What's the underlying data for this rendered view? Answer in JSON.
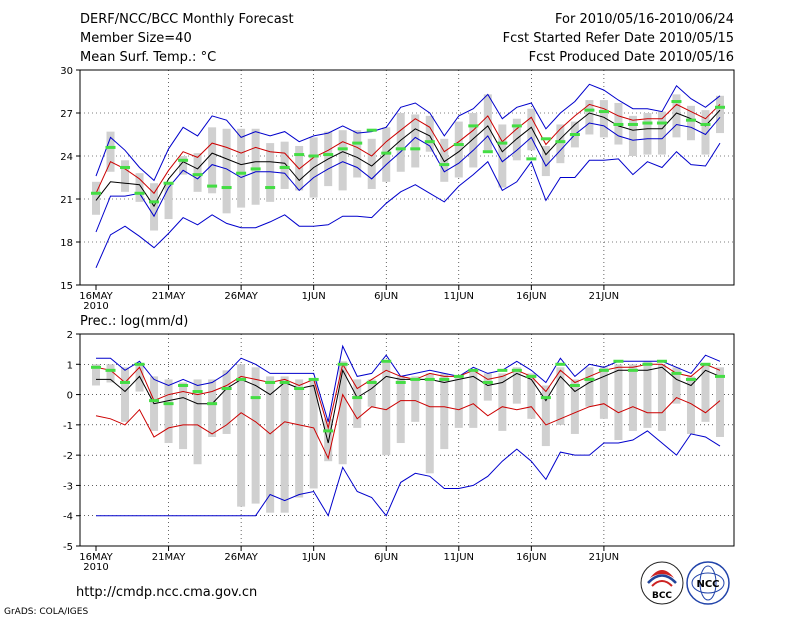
{
  "header": {
    "title": "DERF/NCC/BCC Monthly Forecast",
    "member_size": "Member Size=40",
    "variable": "Mean Surf. Temp.: °C",
    "period": "For 2010/05/16-2010/06/24",
    "started": "Fcst Started Refer Date 2010/05/15",
    "produced": "Fcst Produced Date 2010/05/16"
  },
  "footer": {
    "url": "http://cmdp.ncc.cma.gov.cn",
    "grads": "GrADS: COLA/IGES",
    "logo_bcc": "BCC",
    "logo_ncc": "NCC"
  },
  "colors": {
    "envelope": "#0000cc",
    "spread": "#cc0000",
    "mean": "#000000",
    "bar": "#d0d0d0",
    "marker": "#44dd44"
  },
  "chart_data": [
    {
      "type": "line",
      "title": "Mean Surf. Temp.: °C",
      "x_tick_labels": [
        "16MAY",
        "21MAY",
        "26MAY",
        "1JUN",
        "6JUN",
        "11JUN",
        "16JUN",
        "21JUN"
      ],
      "x_tick_days": [
        0,
        5,
        10,
        15,
        20,
        25,
        30,
        35
      ],
      "x_year_label": "2010",
      "ylim": [
        15,
        30
      ],
      "yticks": [
        15,
        18,
        21,
        24,
        27,
        30
      ],
      "grid": true,
      "series": [
        {
          "name": "max",
          "values": [
            16.2,
            18.5,
            19.1,
            18.4,
            17.6,
            18.6,
            19.7,
            19.2,
            19.9,
            19.3,
            19.0,
            19.0,
            19.4,
            19.9,
            19.1,
            19.1,
            19.2,
            19.8,
            19.8,
            19.7,
            20.7,
            21.5,
            22.0,
            21.4,
            20.8,
            21.9,
            22.7,
            23.6,
            21.6,
            22.2,
            23.6,
            20.9,
            22.5,
            22.5,
            23.7,
            23.7,
            23.8,
            22.7,
            23.6,
            23.2,
            24.3,
            23.4,
            23.3,
            24.9
          ]
        },
        {
          "name": "min",
          "values": [
            18.7,
            21.2,
            21.2,
            21.4,
            19.8,
            21.8,
            23.0,
            22.4,
            23.4,
            23.1,
            22.5,
            22.9,
            22.9,
            22.8,
            21.6,
            22.5,
            23.1,
            23.6,
            23.2,
            22.4,
            23.4,
            24.3,
            25.3,
            24.7,
            22.9,
            23.5,
            24.4,
            25.4,
            23.6,
            24.4,
            25.3,
            23.3,
            24.4,
            25.5,
            26.3,
            26.1,
            25.4,
            25.1,
            25.2,
            25.2,
            26.2,
            26.0,
            25.5,
            26.7
          ]
        },
        {
          "name": "mean",
          "values": [
            20.9,
            22.2,
            22.1,
            22.0,
            20.5,
            22.4,
            23.6,
            23.1,
            24.2,
            23.8,
            23.4,
            23.6,
            23.6,
            23.5,
            22.3,
            23.2,
            23.8,
            24.3,
            23.9,
            23.3,
            24.2,
            25.1,
            25.9,
            25.4,
            23.6,
            24.3,
            25.2,
            26.1,
            24.3,
            25.2,
            26.0,
            24.1,
            25.2,
            26.2,
            27.0,
            26.7,
            26.1,
            25.8,
            25.9,
            25.9,
            27.0,
            26.6,
            26.1,
            27.2
          ]
        },
        {
          "name": "max2",
          "values": [
            21.4,
            23.6,
            23.1,
            22.4,
            21.4,
            23.0,
            24.3,
            23.9,
            24.9,
            24.6,
            24.2,
            24.6,
            24.3,
            24.2,
            23.1,
            23.9,
            24.4,
            25.0,
            24.6,
            24.0,
            25.0,
            25.8,
            26.6,
            26.0,
            24.3,
            25.0,
            25.8,
            26.8,
            25.0,
            25.9,
            26.7,
            24.8,
            25.9,
            26.8,
            27.6,
            27.3,
            26.8,
            26.5,
            26.6,
            26.6,
            27.6,
            27.1,
            26.6,
            27.6
          ]
        },
        {
          "name": "upper",
          "values": [
            22.6,
            25.3,
            24.4,
            23.2,
            22.3,
            24.5,
            26.0,
            25.4,
            26.8,
            26.5,
            25.3,
            25.7,
            25.4,
            25.7,
            25.0,
            25.4,
            25.6,
            26.1,
            25.6,
            25.7,
            26.0,
            27.4,
            27.7,
            27.0,
            25.4,
            26.8,
            27.3,
            28.3,
            26.6,
            27.4,
            27.7,
            25.9,
            27.0,
            27.8,
            29.0,
            28.6,
            27.9,
            27.3,
            27.3,
            27.1,
            28.9,
            28.0,
            27.4,
            28.2
          ]
        },
        {
          "name": "bar_top",
          "values": [
            22.2,
            25.7,
            23.7,
            22.8,
            22.1,
            22.1,
            24.0,
            24.2,
            26.0,
            25.9,
            25.9,
            25.9,
            24.9,
            25.0,
            24.7,
            25.3,
            25.7,
            25.8,
            25.8,
            25.2,
            26.0,
            27.0,
            26.9,
            26.8,
            25.2,
            26.4,
            27.0,
            28.3,
            26.2,
            26.6,
            27.3,
            24.7,
            26.2,
            26.4,
            27.9,
            27.9,
            27.7,
            26.8,
            27.0,
            27.1,
            28.3,
            27.5,
            27.2,
            28.2
          ]
        },
        {
          "name": "bar_bottom",
          "values": [
            19.9,
            22.9,
            21.5,
            20.8,
            18.8,
            19.6,
            22.7,
            21.5,
            21.4,
            20.0,
            20.4,
            20.6,
            20.8,
            21.7,
            21.6,
            21.1,
            21.9,
            21.6,
            22.5,
            21.7,
            22.2,
            22.9,
            23.2,
            24.3,
            22.2,
            22.5,
            23.2,
            24.4,
            21.8,
            23.7,
            24.4,
            22.6,
            23.5,
            24.6,
            25.5,
            25.3,
            24.8,
            24.0,
            24.1,
            24.1,
            25.3,
            25.1,
            24.1,
            25.6
          ]
        },
        {
          "name": "obs_marker",
          "values": [
            21.4,
            24.6,
            23.2,
            21.4,
            20.8,
            22.1,
            23.7,
            22.7,
            21.9,
            21.8,
            22.8,
            23.1,
            21.8,
            23.2,
            24.1,
            24.0,
            24.1,
            24.5,
            24.9,
            25.8,
            24.2,
            24.5,
            24.5,
            25.0,
            23.4,
            24.8,
            26.1,
            24.3,
            24.9,
            26.1,
            23.8,
            25.2,
            25.0,
            25.5,
            27.2,
            27.1,
            26.2,
            26.2,
            26.3,
            26.3,
            27.8,
            26.5,
            26.2,
            27.4
          ]
        }
      ]
    },
    {
      "type": "line",
      "title": "Prec.: log(mm/d)",
      "x_tick_labels": [
        "16MAY",
        "21MAY",
        "26MAY",
        "1JUN",
        "6JUN",
        "11JUN",
        "16JUN",
        "21JUN"
      ],
      "x_tick_days": [
        0,
        5,
        10,
        15,
        20,
        25,
        30,
        35
      ],
      "x_year_label": "2010",
      "ylim": [
        -5,
        2
      ],
      "yticks": [
        -5,
        -4,
        -3,
        -2,
        -1,
        0,
        1,
        2
      ],
      "grid": true,
      "series": [
        {
          "name": "min",
          "values": [
            -4.0,
            -4.0,
            -4.0,
            -4.0,
            -4.0,
            -4.0,
            -4.0,
            -4.0,
            -4.0,
            -4.0,
            -4.0,
            -4.0,
            -3.3,
            -3.5,
            -3.3,
            -3.2,
            -4.0,
            -2.4,
            -3.2,
            -3.4,
            -4.0,
            -2.9,
            -2.6,
            -2.7,
            -3.1,
            -3.1,
            -3.0,
            -2.7,
            -2.2,
            -1.8,
            -2.2,
            -2.8,
            -1.9,
            -2.0,
            -2.0,
            -1.6,
            -1.6,
            -1.5,
            -1.2,
            -1.6,
            -2.0,
            -1.3,
            -1.4,
            -1.7
          ]
        },
        {
          "name": "spread_low",
          "values": [
            -0.7,
            -0.8,
            -1.0,
            -0.5,
            -1.4,
            -1.1,
            -1.0,
            -1.0,
            -1.3,
            -1.0,
            -0.6,
            -0.9,
            -1.3,
            -0.9,
            -1.0,
            -1.1,
            -2.1,
            0.0,
            -0.8,
            -0.4,
            -0.5,
            -0.2,
            -0.2,
            -0.4,
            -0.4,
            -0.5,
            -0.3,
            -0.7,
            -0.4,
            -0.5,
            -0.4,
            -1.0,
            -0.8,
            -0.6,
            -0.4,
            -0.3,
            -0.6,
            -0.4,
            -0.6,
            -0.6,
            -0.1,
            -0.3,
            -0.6,
            -0.2
          ]
        },
        {
          "name": "mean",
          "values": [
            0.5,
            0.5,
            0.1,
            0.6,
            -0.3,
            -0.2,
            -0.1,
            -0.3,
            -0.3,
            0.2,
            0.5,
            0.3,
            0.0,
            0.4,
            0.2,
            0.3,
            -1.6,
            0.8,
            -0.1,
            0.2,
            0.6,
            0.5,
            0.5,
            0.5,
            0.4,
            0.5,
            0.6,
            0.3,
            0.4,
            0.7,
            0.5,
            -0.2,
            0.6,
            0.1,
            0.4,
            0.6,
            0.8,
            0.8,
            0.8,
            0.9,
            0.5,
            0.3,
            0.8,
            0.6
          ]
        },
        {
          "name": "spread_high",
          "values": [
            0.9,
            0.8,
            0.4,
            0.9,
            -0.2,
            0.0,
            0.1,
            0.0,
            0.1,
            0.3,
            0.6,
            0.5,
            0.4,
            0.5,
            0.3,
            0.5,
            -1.1,
            1.0,
            0.2,
            0.5,
            0.8,
            0.6,
            0.5,
            0.7,
            0.6,
            0.6,
            0.8,
            0.5,
            0.6,
            0.8,
            0.6,
            0.1,
            0.8,
            0.4,
            0.6,
            0.8,
            0.9,
            0.9,
            1.0,
            1.0,
            0.7,
            0.6,
            1.0,
            0.8
          ]
        },
        {
          "name": "max",
          "values": [
            1.2,
            1.2,
            0.8,
            1.1,
            0.5,
            0.3,
            0.5,
            0.3,
            0.4,
            0.7,
            1.2,
            1.0,
            0.7,
            0.7,
            0.7,
            0.7,
            -0.9,
            1.6,
            0.6,
            0.7,
            1.3,
            0.6,
            0.7,
            0.8,
            0.7,
            0.6,
            0.9,
            0.7,
            0.8,
            1.1,
            0.8,
            0.4,
            1.2,
            0.6,
            1.0,
            0.9,
            1.1,
            1.1,
            1.1,
            1.1,
            0.9,
            0.7,
            1.3,
            1.1
          ]
        },
        {
          "name": "bar_top",
          "values": [
            1.0,
            1.0,
            0.9,
            1.0,
            0.6,
            0.5,
            0.4,
            0.5,
            0.5,
            0.8,
            1.0,
            0.9,
            0.6,
            0.6,
            0.5,
            0.5,
            -0.8,
            1.1,
            0.5,
            0.5,
            1.1,
            0.6,
            0.6,
            0.7,
            0.7,
            0.6,
            0.8,
            0.7,
            0.7,
            0.9,
            0.7,
            0.3,
            0.9,
            0.5,
            0.9,
            0.9,
            1.0,
            1.0,
            1.1,
            1.0,
            0.9,
            0.6,
            1.0,
            0.9
          ]
        },
        {
          "name": "bar_bottom",
          "values": [
            0.3,
            0.4,
            -0.9,
            0.1,
            -1.2,
            -1.6,
            -1.8,
            -2.3,
            -1.4,
            -1.3,
            -3.7,
            -3.6,
            -3.9,
            -3.9,
            -3.4,
            -3.1,
            -2.2,
            -2.3,
            -1.1,
            -0.4,
            -2.0,
            -1.6,
            -0.9,
            -2.6,
            -1.8,
            -1.1,
            -1.1,
            -0.2,
            -1.2,
            -0.3,
            -0.8,
            -1.7,
            -1.0,
            -1.3,
            -0.4,
            -0.8,
            -1.5,
            -1.2,
            -1.1,
            -1.2,
            -0.3,
            -1.3,
            -0.9,
            -1.4
          ]
        },
        {
          "name": "obs_marker",
          "values": [
            0.9,
            0.8,
            0.4,
            1.0,
            -0.2,
            -0.3,
            0.3,
            0.1,
            -0.3,
            0.2,
            0.5,
            -0.1,
            0.4,
            0.4,
            0.2,
            0.5,
            -1.2,
            1.0,
            -0.1,
            0.4,
            1.1,
            0.4,
            0.5,
            0.5,
            0.5,
            0.6,
            0.8,
            0.4,
            0.8,
            0.8,
            0.6,
            -0.1,
            1.0,
            0.3,
            0.5,
            0.8,
            1.1,
            0.8,
            1.0,
            1.1,
            0.7,
            0.5,
            1.0,
            0.6
          ]
        }
      ]
    }
  ]
}
